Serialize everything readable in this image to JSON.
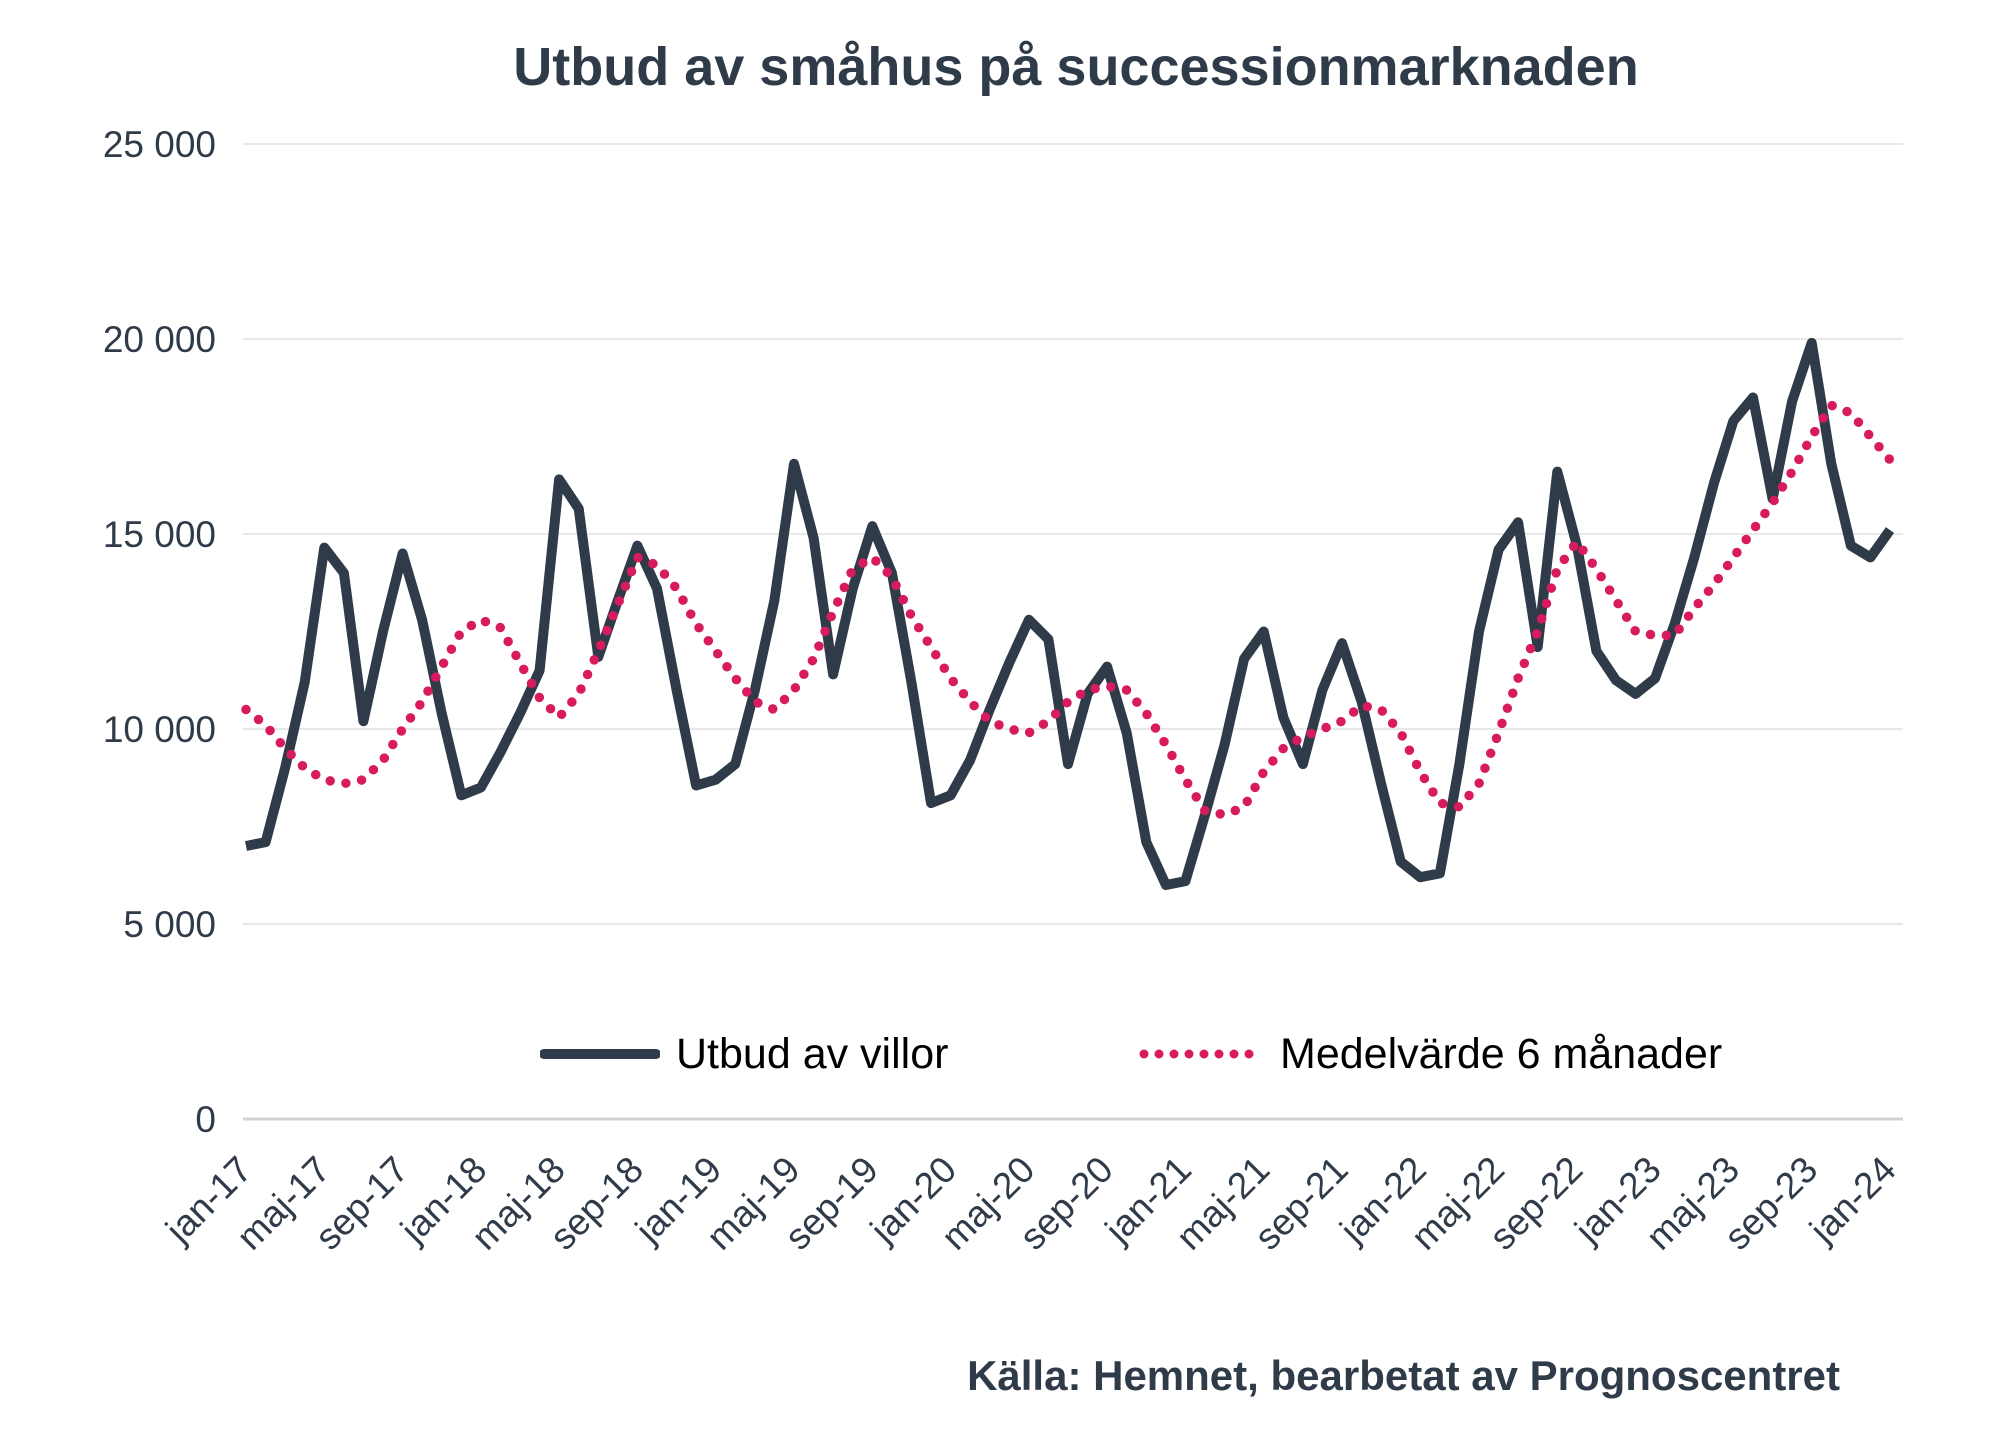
{
  "title": "Utbud av småhus på successionmarknaden",
  "source": "Källa: Hemnet, bearbetat av Prognoscentret",
  "colors": {
    "primary_line": "#2f3b49",
    "accent_line": "#d81b5e",
    "grid": "#e8e8e8",
    "axis": "#d2d2d2",
    "text": "#2f3b49",
    "legend_text": "#000000",
    "background": "#ffffff"
  },
  "chart_data": {
    "type": "line",
    "title": "Utbud av småhus på successionmarknaden",
    "xlabel": "",
    "ylabel": "",
    "ylim": [
      0,
      25000
    ],
    "y_ticks": [
      0,
      5000,
      10000,
      15000,
      20000,
      25000
    ],
    "y_tick_labels": [
      "0",
      "5 000",
      "10 000",
      "15 000",
      "20 000",
      "25 000"
    ],
    "grid": "horizontal",
    "legend_position": "bottom",
    "x_tick_every": 4,
    "x_ticks": [
      "jan-17",
      "maj-17",
      "sep-17",
      "jan-18",
      "maj-18",
      "sep-18",
      "jan-19",
      "maj-19",
      "sep-19",
      "jan-20",
      "maj-20",
      "sep-20",
      "jan-21",
      "maj-21",
      "sep-21",
      "jan-22",
      "maj-22",
      "sep-22",
      "jan-23",
      "maj-23",
      "sep-23",
      "jan-24"
    ],
    "x": [
      "jan-17",
      "feb-17",
      "mar-17",
      "apr-17",
      "maj-17",
      "jun-17",
      "jul-17",
      "aug-17",
      "sep-17",
      "okt-17",
      "nov-17",
      "dec-17",
      "jan-18",
      "feb-18",
      "mar-18",
      "apr-18",
      "maj-18",
      "jun-18",
      "jul-18",
      "aug-18",
      "sep-18",
      "okt-18",
      "nov-18",
      "dec-18",
      "jan-19",
      "feb-19",
      "mar-19",
      "apr-19",
      "maj-19",
      "jun-19",
      "jul-19",
      "aug-19",
      "sep-19",
      "okt-19",
      "nov-19",
      "dec-19",
      "jan-20",
      "feb-20",
      "mar-20",
      "apr-20",
      "maj-20",
      "jun-20",
      "jul-20",
      "aug-20",
      "sep-20",
      "okt-20",
      "nov-20",
      "dec-20",
      "jan-21",
      "feb-21",
      "mar-21",
      "apr-21",
      "maj-21",
      "jun-21",
      "jul-21",
      "aug-21",
      "sep-21",
      "okt-21",
      "nov-21",
      "dec-21",
      "jan-22",
      "feb-22",
      "mar-22",
      "apr-22",
      "maj-22",
      "jun-22",
      "jul-22",
      "aug-22",
      "sep-22",
      "okt-22",
      "nov-22",
      "dec-22",
      "jan-23",
      "feb-23",
      "mar-23",
      "apr-23",
      "maj-23",
      "jun-23",
      "jul-23",
      "aug-23",
      "sep-23",
      "okt-23",
      "nov-23",
      "dec-23",
      "jan-24"
    ],
    "series": [
      {
        "name": "Utbud av villor",
        "style": "solid",
        "color": "#2f3b49",
        "values": [
          7000,
          7100,
          9000,
          11200,
          14650,
          14000,
          10200,
          12500,
          14500,
          12800,
          10400,
          8300,
          8500,
          9400,
          10400,
          11500,
          16400,
          15650,
          11850,
          13300,
          14700,
          13600,
          11000,
          8550,
          8700,
          9100,
          11000,
          13300,
          16800,
          14900,
          11400,
          13600,
          15200,
          14000,
          11200,
          8100,
          8300,
          9200,
          10500,
          11700,
          12800,
          12300,
          9100,
          10900,
          11600,
          9900,
          7100,
          6000,
          6100,
          7800,
          9600,
          11800,
          12500,
          10300,
          9100,
          11000,
          12200,
          10700,
          8600,
          6600,
          6200,
          6300,
          9100,
          12500,
          14600,
          15300,
          12100,
          16600,
          14700,
          12000,
          11250,
          10900,
          11300,
          12700,
          14400,
          16300,
          17900,
          18500,
          15900,
          18400,
          19900,
          16800,
          14700,
          14400,
          15100
        ]
      },
      {
        "name": "Medelvärde 6 månader",
        "style": "dotted",
        "color": "#d81b5e",
        "values": [
          10500,
          10100,
          9500,
          9000,
          8700,
          8600,
          8700,
          9200,
          10000,
          10700,
          11600,
          12500,
          12800,
          12600,
          11700,
          10800,
          10300,
          10900,
          12000,
          13200,
          14400,
          14200,
          13600,
          12700,
          12000,
          11300,
          10700,
          10500,
          11000,
          11800,
          13000,
          14100,
          14400,
          13900,
          12900,
          12100,
          11300,
          10700,
          10200,
          10000,
          9900,
          10200,
          10700,
          11000,
          11100,
          11000,
          10400,
          9600,
          8700,
          7900,
          7800,
          8000,
          8900,
          9500,
          9800,
          10000,
          10200,
          10600,
          10500,
          9900,
          8900,
          8100,
          8000,
          8600,
          9900,
          11300,
          12500,
          14100,
          14800,
          14100,
          13300,
          12500,
          12400,
          12400,
          13100,
          13700,
          14400,
          15100,
          15800,
          16600,
          17500,
          18300,
          18100,
          17500,
          16900
        ]
      }
    ]
  }
}
